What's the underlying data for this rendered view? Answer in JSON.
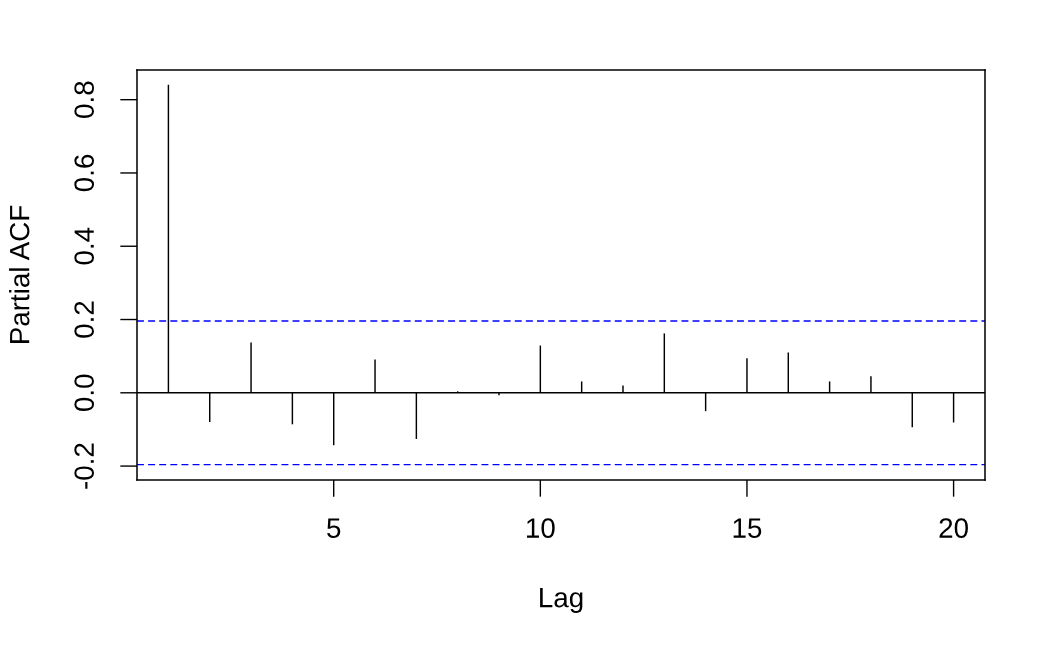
{
  "chart_data": {
    "type": "bar",
    "xlabel": "Lag",
    "ylabel": "Partial ACF",
    "x": [
      1,
      2,
      3,
      4,
      5,
      6,
      7,
      8,
      9,
      10,
      11,
      12,
      13,
      14,
      15,
      16,
      17,
      18,
      19,
      20
    ],
    "series": [
      {
        "color": "#000000",
        "values": [
          0.841,
          -0.08,
          0.137,
          -0.086,
          -0.143,
          0.091,
          -0.126,
          0.004,
          -0.007,
          0.129,
          0.031,
          0.02,
          0.162,
          -0.05,
          0.094,
          0.11,
          0.031,
          0.045,
          -0.094,
          -0.081
        ]
      }
    ],
    "xlim": [
      0.24,
      20.76
    ],
    "ylim": [
      -0.238,
      0.881
    ],
    "xticks": [
      5,
      10,
      15,
      20
    ],
    "yticks": [
      -0.2,
      {
        "value": 0,
        "label": "0.0"
      },
      0.2,
      0.4,
      0.6,
      0.8
    ],
    "ref_lines": [
      {
        "axis": "y",
        "value": 0,
        "color": "#000000",
        "line_style": "solid"
      },
      {
        "axis": "y",
        "value": 0.196,
        "color": "#0000ff",
        "line_style": "dashed"
      },
      {
        "axis": "y",
        "value": -0.196,
        "color": "#0000ff",
        "line_style": "dashed"
      }
    ]
  }
}
